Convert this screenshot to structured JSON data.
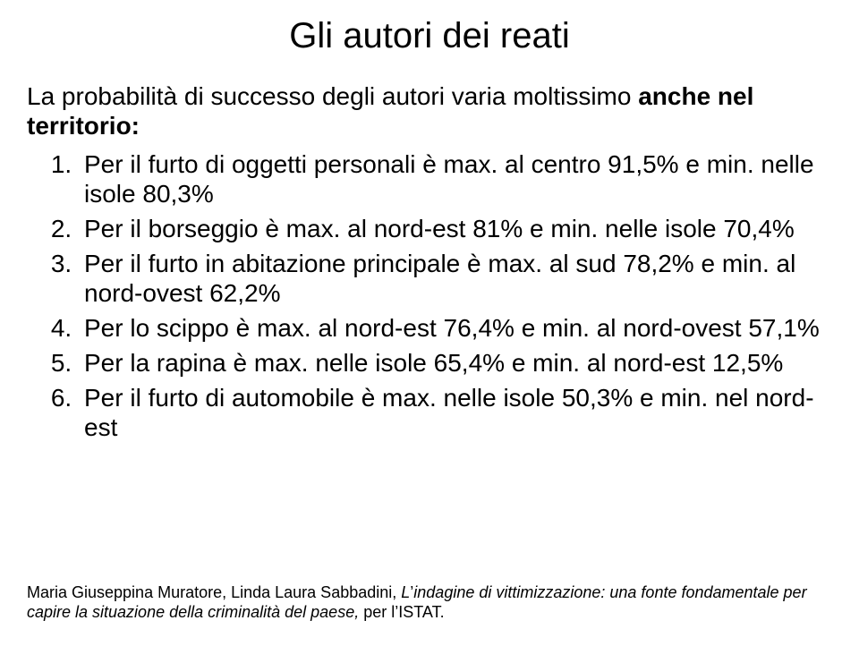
{
  "title": "Gli autori dei reati",
  "intro_line1": "La probabilità di successo degli autori varia moltissimo ",
  "intro_bold": "anche nel territorio:",
  "items": {
    "1": "Per il furto di oggetti personali è max. al centro 91,5% e  min. nelle isole 80,3%",
    "2": "Per il borseggio è max. al nord-est 81% e min. nelle isole 70,4%",
    "3": "Per il furto in abitazione principale è max. al sud 78,2% e min. al nord-ovest 62,2%",
    "4": "Per lo scippo è max. al nord-est 76,4% e min. al nord-ovest 57,1%",
    "5": "Per la rapina è max. nelle isole 65,4% e min. al nord-est 12,5%",
    "6": "Per il furto di automobile è max. nelle isole 50,3% e min. nel nord-est"
  },
  "footer": {
    "authors": "Maria Giuseppina Muratore, Linda Laura Sabbadini, ",
    "work_prefix": "L",
    "apostrophe": "’",
    "work_rest": "indagine di vittimizzazione:  una fonte fondamentale per capire la situazione della criminalità del paese, ",
    "publisher": "per l",
    "publisher_rest": "ISTAT."
  }
}
